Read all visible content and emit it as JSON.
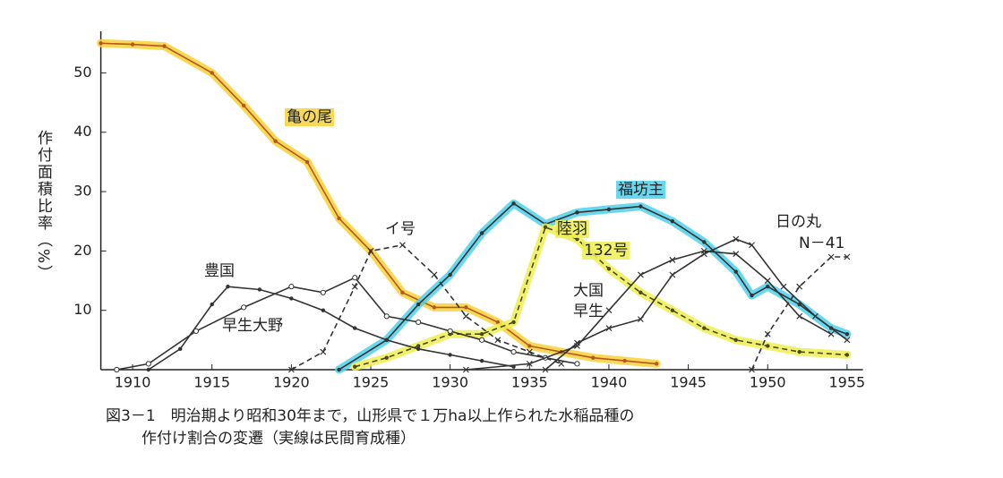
{
  "chart_data": {
    "type": "line",
    "ylabel": "作付面積比率（%）",
    "caption": [
      "図3－1　明治期より昭和30年まで，山形県で１万ha以上作られた水稲品種の",
      "作付け割合の変遷（実線は民間育成種）"
    ],
    "xlim": [
      1908,
      1956
    ],
    "xticks": [
      1910,
      1915,
      1920,
      1925,
      1930,
      1935,
      1940,
      1945,
      1950,
      1955
    ],
    "ylim": [
      0,
      57
    ],
    "yticks": [
      10,
      20,
      30,
      40,
      50
    ],
    "series": [
      {
        "name": [
          "亀の尾"
        ],
        "color": "#b8561e",
        "highlight": "#f7d23a",
        "dash": false,
        "marker": "dot",
        "x": [
          1908,
          1910,
          1912,
          1915,
          1917,
          1919,
          1921,
          1923,
          1925,
          1927,
          1929,
          1931,
          1933,
          1935,
          1937,
          1939,
          1941,
          1943
        ],
        "values": [
          55,
          54.8,
          54.5,
          50,
          44.5,
          38.5,
          35,
          25.5,
          20,
          13,
          10.5,
          10.5,
          8,
          4,
          3,
          2,
          1.5,
          1
        ]
      },
      {
        "name": [
          "福坊主"
        ],
        "color": "#333333",
        "highlight": "#4fd0ea",
        "dash": false,
        "marker": "dot",
        "x": [
          1923,
          1926,
          1928,
          1930,
          1932,
          1934,
          1936,
          1938,
          1940,
          1942,
          1944,
          1946,
          1948,
          1949,
          1950,
          1952,
          1954,
          1955
        ],
        "values": [
          0,
          5,
          11,
          16,
          23,
          28,
          24.5,
          26.5,
          27,
          27.5,
          25,
          21.5,
          16.5,
          12.5,
          14,
          11,
          7,
          6
        ]
      },
      {
        "name": [
          "陸羽",
          "132号"
        ],
        "color": "#4a4a1a",
        "highlight": "#eeee55",
        "dash": true,
        "marker": "dot",
        "x": [
          1924,
          1926,
          1928,
          1930,
          1932,
          1934,
          1936,
          1938,
          1940,
          1942,
          1944,
          1946,
          1948,
          1950,
          1952,
          1955
        ],
        "values": [
          0.5,
          2,
          4,
          6,
          6,
          8,
          24,
          22,
          17,
          13,
          10,
          7,
          5,
          4,
          3,
          2.5
        ]
      },
      {
        "name": [
          "イ号"
        ],
        "color": "#333333",
        "dash": true,
        "marker": "x",
        "x": [
          1920,
          1922,
          1924,
          1925,
          1927,
          1929,
          1931,
          1933,
          1935,
          1937
        ],
        "values": [
          0,
          3,
          14,
          20,
          21,
          16,
          9,
          5,
          3,
          1
        ]
      },
      {
        "name": [
          "豊国"
        ],
        "color": "#333333",
        "dash": false,
        "marker": "dot",
        "x": [
          1911,
          1913,
          1915,
          1916,
          1918,
          1920,
          1922,
          1924,
          1926,
          1928,
          1930,
          1932,
          1934
        ],
        "values": [
          0,
          3.5,
          11,
          14,
          13.5,
          12,
          10,
          7,
          5,
          3.5,
          2.5,
          1.5,
          0.5
        ]
      },
      {
        "name": [
          "早生大野"
        ],
        "color": "#333333",
        "dash": false,
        "marker": "circle",
        "x": [
          1909,
          1911,
          1914,
          1917,
          1920,
          1922,
          1924,
          1926,
          1928,
          1930,
          1932,
          1934,
          1936,
          1938
        ],
        "values": [
          0,
          1,
          6.5,
          10.5,
          14,
          13,
          15.5,
          9,
          8,
          6.5,
          5,
          3,
          2,
          1
        ]
      },
      {
        "name": [
          "大国",
          "早生"
        ],
        "color": "#333333",
        "dash": false,
        "marker": "x",
        "x": [
          1931,
          1935,
          1938,
          1940,
          1942,
          1944,
          1946,
          1948,
          1950,
          1952,
          1954
        ],
        "values": [
          0,
          1,
          4,
          10,
          16,
          18.5,
          20,
          19.5,
          15,
          9,
          6
        ]
      },
      {
        "name": [
          "日の丸"
        ],
        "color": "#333333",
        "dash": false,
        "marker": "x",
        "x": [
          1936,
          1938,
          1940,
          1942,
          1944,
          1946,
          1948,
          1949,
          1951,
          1953,
          1955
        ],
        "values": [
          0,
          4.5,
          7,
          8.5,
          16,
          19.5,
          22,
          21,
          14,
          9,
          5
        ]
      },
      {
        "name": [
          "N－41"
        ],
        "color": "#333333",
        "dash": true,
        "marker": "x",
        "x": [
          1949,
          1950,
          1952,
          1954,
          1955
        ],
        "values": [
          0,
          6,
          14,
          19,
          19
        ]
      }
    ]
  }
}
